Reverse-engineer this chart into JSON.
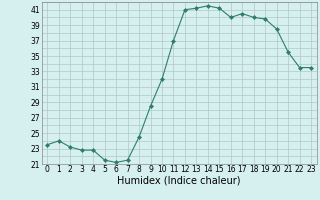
{
  "x": [
    0,
    1,
    2,
    3,
    4,
    5,
    6,
    7,
    8,
    9,
    10,
    11,
    12,
    13,
    14,
    15,
    16,
    17,
    18,
    19,
    20,
    21,
    22,
    23
  ],
  "y": [
    23.5,
    24.0,
    23.2,
    22.8,
    22.8,
    21.5,
    21.2,
    21.5,
    24.5,
    28.5,
    32.0,
    37.0,
    41.0,
    41.2,
    41.5,
    41.2,
    40.0,
    40.5,
    40.0,
    39.8,
    38.5,
    35.5,
    33.5,
    33.5
  ],
  "xlim": [
    -0.5,
    23.5
  ],
  "ylim": [
    21,
    42
  ],
  "yticks": [
    21,
    23,
    25,
    27,
    29,
    31,
    33,
    35,
    37,
    39,
    41
  ],
  "xticks": [
    0,
    1,
    2,
    3,
    4,
    5,
    6,
    7,
    8,
    9,
    10,
    11,
    12,
    13,
    14,
    15,
    16,
    17,
    18,
    19,
    20,
    21,
    22,
    23
  ],
  "xlabel": "Humidex (Indice chaleur)",
  "line_color": "#2e7d6e",
  "marker": "D",
  "marker_size": 2.0,
  "bg_color": "#d6f0ef",
  "grid_color": "#b0c8c4",
  "tick_fontsize": 5.5,
  "xlabel_fontsize": 7.0
}
